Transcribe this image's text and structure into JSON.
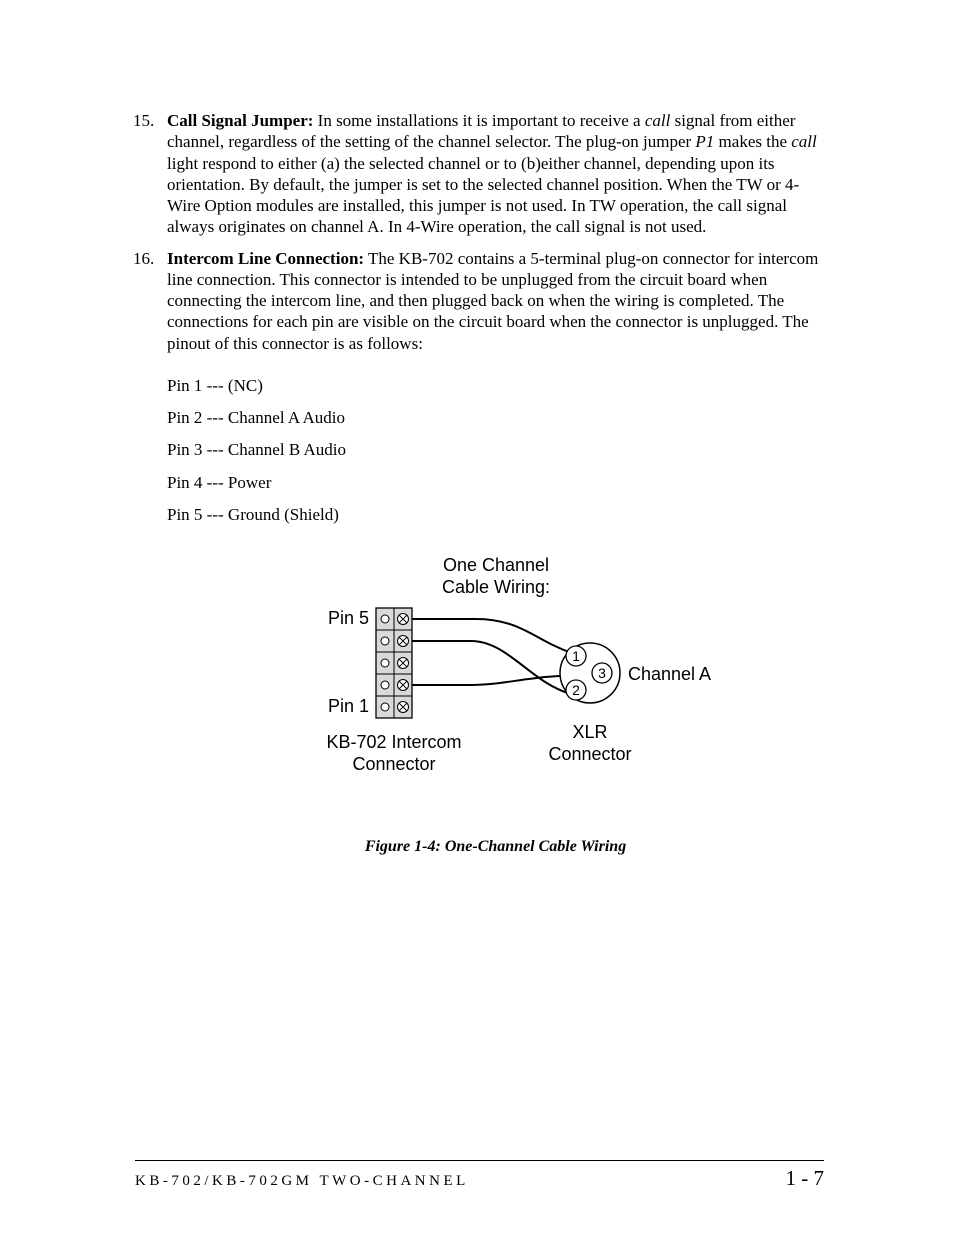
{
  "items": [
    {
      "num": "15.",
      "heading": "Call Signal Jumper:",
      "body_parts": [
        {
          "t": "plain",
          "v": " In some installations it is important to receive a "
        },
        {
          "t": "italic",
          "v": "call"
        },
        {
          "t": "plain",
          "v": " signal from either channel, regardless of the setting of the channel selector. The plug-on jumper "
        },
        {
          "t": "italic",
          "v": "P1"
        },
        {
          "t": "plain",
          "v": " makes the "
        },
        {
          "t": "italic",
          "v": "call"
        },
        {
          "t": "plain",
          "v": " light respond to either (a) the selected channel or to (b)either channel, depending upon its orientation. By default, the jumper is set to the selected channel position. When the TW or 4-Wire Option modules are installed, this jumper is not used. In TW operation, the call signal always originates on channel A. In 4-Wire operation, the call signal is not used."
        }
      ]
    },
    {
      "num": "16.",
      "heading": "Intercom Line Connection:",
      "body_parts": [
        {
          "t": "plain",
          "v": " The KB-702 contains a 5-terminal plug-on connector for intercom line connection. This connector is intended to be unplugged from the circuit board when connecting the intercom line, and then plugged back on when the wiring is completed. The connections for each pin are visible on the circuit board when the connector is unplugged. The pinout of this connector is as follows:"
        }
      ],
      "pins": [
        "Pin 1 --- (NC)",
        "Pin 2 --- Channel A Audio",
        "Pin 3 --- Channel B Audio",
        "Pin 4 --- Power",
        "Pin 5 --- Ground (Shield)"
      ]
    }
  ],
  "diagram": {
    "title_l1": "One Channel",
    "title_l2": "Cable Wiring:",
    "left_top_label": "Pin 5",
    "left_bot_label": "Pin 1",
    "left_caption_l1": "KB-702 Intercom",
    "left_caption_l2": "Connector",
    "right_caption_l1": "XLR",
    "right_caption_l2": "Connector",
    "right_label": "Channel A",
    "xlr_numbers": [
      "1",
      "2",
      "3"
    ],
    "stroke": "#000000",
    "fill_bg": "#ffffff",
    "term_fill": "#d9d9d9"
  },
  "caption": "Figure 1-4: One-Channel Cable Wiring",
  "footer_left": "KB-702/KB-702GM TWO-CHANNEL",
  "footer_right": "1 - 7"
}
